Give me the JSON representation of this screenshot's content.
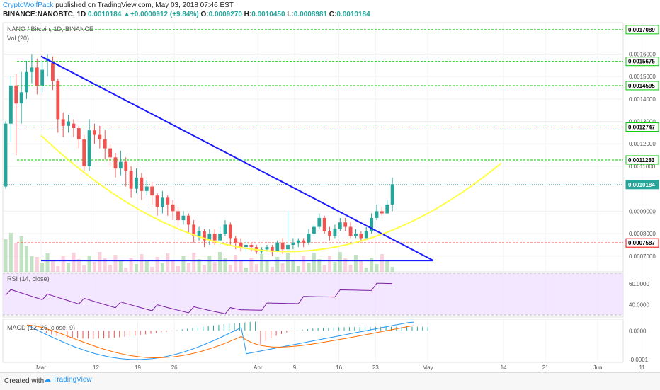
{
  "header": {
    "author": "CryptoWolfPack",
    "published_text": " published on TradingView.com, May 03, 2018 07:46 EST",
    "symbol_line_prefix": "BINANCE:NANOBTC, 1D ",
    "last_value": "0.0010184",
    "change_arrow": "▲",
    "change_text": "+0.0000912 (+9.84%)",
    "o_label": " O:",
    "o_value": "0.0009270",
    "h_label": " H:",
    "h_value": "0.0010450",
    "l_label": " L:",
    "l_value": "0.0008981",
    "c_label": " C:",
    "c_value": "0.0010184"
  },
  "panes": {
    "main_title": "NANO / Bitcoin, 1D, BINANCE",
    "vol_label": "Vol (20)",
    "rsi_label": "RSI (14, close)",
    "macd_label": "MACD (12, 26, close, 9)"
  },
  "footer": {
    "created_with": "Created with",
    "brand": "TradingView"
  },
  "colors": {
    "up": "#26a69a",
    "down": "#ef5350",
    "trendline": "#1a1aff",
    "curve": "#ffff44",
    "level": "#00cc00",
    "support": "#ff0000",
    "rsi_band": "#f0e0ff",
    "rsi_line": "#7b1fa2",
    "macd": "#2196f3",
    "signal": "#ff6d00"
  },
  "chart_data": [
    {
      "type": "candlestick",
      "title": "NANO / Bitcoin, 1D, BINANCE",
      "y_ticks": [
        "0.0016000",
        "0.0015000",
        "0.0014000",
        "0.0013000",
        "0.0012000",
        "0.0011000",
        "0.0009000",
        "0.0008000",
        "0.0007000"
      ],
      "ylim": [
        0.00063,
        0.00174
      ],
      "x_ticks": [
        "Mar",
        "12",
        "19",
        "26",
        "Apr",
        "9",
        "16",
        "23",
        "May",
        "14",
        "21",
        "Jun",
        "11"
      ],
      "price_labels": [
        {
          "label": "0.0017089",
          "value": 0.0017089,
          "color": "green"
        },
        {
          "label": "0.0015675",
          "value": 0.0015675,
          "color": "green"
        },
        {
          "label": "0.0014595",
          "value": 0.0014595,
          "color": "green"
        },
        {
          "label": "0.0012747",
          "value": 0.0012747,
          "color": "green"
        },
        {
          "label": "0.0011283",
          "value": 0.0011283,
          "color": "green"
        },
        {
          "label": "0.0010184",
          "value": 0.0010184,
          "color": "last"
        },
        {
          "label": "0.0007587",
          "value": 0.0007587,
          "color": "red"
        }
      ],
      "candles": [
        [
          0.00101,
          0.00129,
          0.0013,
          0.001
        ],
        [
          0.00129,
          0.00146,
          0.0015,
          0.00121
        ],
        [
          0.00146,
          0.00138,
          0.00151,
          0.00115
        ],
        [
          0.00138,
          0.00143,
          0.00152,
          0.00129
        ],
        [
          0.00143,
          0.00152,
          0.00157,
          0.0014
        ],
        [
          0.00152,
          0.00154,
          0.0016,
          0.00147
        ],
        [
          0.00154,
          0.00146,
          0.00158,
          0.00142
        ],
        [
          0.00146,
          0.00153,
          0.00157,
          0.00143
        ],
        [
          0.00157,
          0.00158,
          0.0016,
          0.0015
        ],
        [
          0.00156,
          0.00148,
          0.00159,
          0.00144
        ],
        [
          0.00148,
          0.00131,
          0.00149,
          0.00125
        ],
        [
          0.00131,
          0.00128,
          0.00134,
          0.00123
        ],
        [
          0.00128,
          0.0013,
          0.00133,
          0.00125
        ],
        [
          0.00129,
          0.00127,
          0.00131,
          0.00123
        ],
        [
          0.00127,
          0.00122,
          0.00128,
          0.00118
        ],
        [
          0.00122,
          0.0011,
          0.00124,
          0.00108
        ],
        [
          0.0011,
          0.00126,
          0.00131,
          0.00108
        ],
        [
          0.00126,
          0.00124,
          0.00129,
          0.0012
        ],
        [
          0.00124,
          0.00122,
          0.00128,
          0.00118
        ],
        [
          0.00122,
          0.00118,
          0.00126,
          0.00113
        ],
        [
          0.00118,
          0.00114,
          0.0012,
          0.0011
        ],
        [
          0.00114,
          0.00109,
          0.00116,
          0.00105
        ],
        [
          0.00109,
          0.00112,
          0.00117,
          0.00106
        ],
        [
          0.00112,
          0.00108,
          0.00114,
          0.00101
        ],
        [
          0.00108,
          0.001,
          0.0011,
          0.00096
        ],
        [
          0.001,
          0.00105,
          0.00109,
          0.00098
        ],
        [
          0.00105,
          0.00099,
          0.00107,
          0.00095
        ],
        [
          0.00099,
          0.00101,
          0.00104,
          0.00097
        ],
        [
          0.00101,
          0.00097,
          0.00103,
          0.00093
        ],
        [
          0.00097,
          0.00092,
          0.00098,
          0.00088
        ],
        [
          0.00092,
          0.00096,
          0.00099,
          0.00089
        ],
        [
          0.00096,
          0.00093,
          0.00097,
          0.00088
        ],
        [
          0.00093,
          0.0009,
          0.00095,
          0.00086
        ],
        [
          0.0009,
          0.00086,
          0.00092,
          0.00083
        ],
        [
          0.00086,
          0.00088,
          0.0009,
          0.00084
        ],
        [
          0.00088,
          0.00084,
          0.00089,
          0.0008
        ],
        [
          0.00084,
          0.00079,
          0.00086,
          0.00076
        ],
        [
          0.00079,
          0.00081,
          0.00083,
          0.00077
        ],
        [
          0.00081,
          0.00077,
          0.00082,
          0.00074
        ],
        [
          0.00077,
          0.0008,
          0.00082,
          0.00075
        ],
        [
          0.0008,
          0.00077,
          0.00082,
          0.00075
        ],
        [
          0.00077,
          0.0008,
          0.00083,
          0.00075
        ],
        [
          0.0008,
          0.00084,
          0.00086,
          0.00079
        ],
        [
          0.00084,
          0.00078,
          0.00085,
          0.00075
        ],
        [
          0.00078,
          0.00076,
          0.00079,
          0.00073
        ],
        [
          0.00076,
          0.00074,
          0.00078,
          0.00072
        ],
        [
          0.00074,
          0.00075,
          0.00077,
          0.00072
        ],
        [
          0.00075,
          0.00074,
          0.00076,
          0.00072
        ],
        [
          0.00074,
          0.00072,
          0.00075,
          0.00071
        ],
        [
          0.00072,
          0.00073,
          0.00074,
          0.00071
        ],
        [
          0.00073,
          0.00074,
          0.00075,
          0.00072
        ],
        [
          0.00074,
          0.00072,
          0.00075,
          0.0007
        ],
        [
          0.00072,
          0.00076,
          0.00077,
          0.00072
        ],
        [
          0.00076,
          0.00073,
          0.00078,
          0.00071
        ],
        [
          0.00073,
          0.00075,
          0.0009,
          0.00072
        ],
        [
          0.00075,
          0.00076,
          0.00078,
          0.00073
        ],
        [
          0.00076,
          0.00077,
          0.00078,
          0.00074
        ],
        [
          0.00077,
          0.00076,
          0.00078,
          0.00074
        ],
        [
          0.00076,
          0.0008,
          0.00082,
          0.00075
        ],
        [
          0.0008,
          0.00083,
          0.00084,
          0.00079
        ],
        [
          0.00083,
          0.00087,
          0.00089,
          0.00082
        ],
        [
          0.00087,
          0.00081,
          0.00088,
          0.0008
        ],
        [
          0.00081,
          0.00079,
          0.00083,
          0.00077
        ],
        [
          0.00079,
          0.00082,
          0.00084,
          0.00078
        ],
        [
          0.00082,
          0.00085,
          0.00087,
          0.00081
        ],
        [
          0.00085,
          0.00083,
          0.00087,
          0.00081
        ],
        [
          0.00083,
          0.00079,
          0.00085,
          0.00078
        ],
        [
          0.00079,
          0.0008,
          0.00082,
          0.00078
        ],
        [
          0.0008,
          0.00078,
          0.00081,
          0.00077
        ],
        [
          0.00078,
          0.00081,
          0.00083,
          0.00078
        ],
        [
          0.00081,
          0.00087,
          0.00089,
          0.0008
        ],
        [
          0.00087,
          0.0009,
          0.00093,
          0.00086
        ],
        [
          0.0009,
          0.00089,
          0.00092,
          0.00088
        ],
        [
          0.00089,
          0.00093,
          0.00095,
          0.00089
        ],
        [
          0.00093,
          0.00102,
          0.00105,
          0.0009
        ]
      ]
    },
    {
      "type": "bar",
      "title": "Vol (20)"
    },
    {
      "type": "line",
      "title": "RSI (14, close)",
      "y_ticks": [
        "60.0000",
        "40.0000"
      ],
      "ylim": [
        28,
        70
      ]
    },
    {
      "type": "line",
      "title": "MACD (12, 26, close, 9)",
      "y_ticks": [
        "0.0000",
        "-0.0001"
      ],
      "ylim": [
        -0.00011,
        4e-05
      ]
    }
  ]
}
